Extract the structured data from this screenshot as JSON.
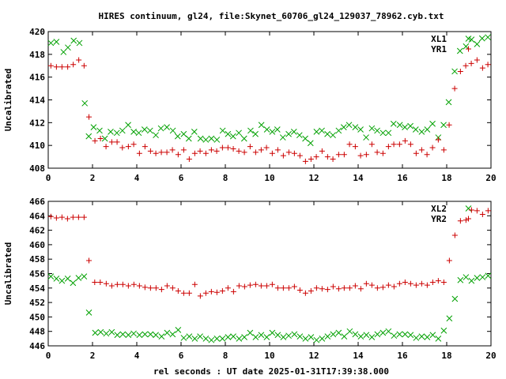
{
  "title": "HIRES continuum, gl24, file:Skynet_60706_gl24_129037_78962.cyb.txt",
  "xlabel": "rel seconds : UT date 2025-01-31T17:39:38.000",
  "colors": {
    "green": "#00a000",
    "red": "#cc0000",
    "axis": "#000000"
  },
  "chart_data": [
    {
      "type": "scatter",
      "ylabel": "Uncalibrated",
      "xlim": [
        0,
        20
      ],
      "ylim": [
        408,
        420
      ],
      "xticks": [
        "0",
        "2",
        "4",
        "6",
        "8",
        "10",
        "12",
        "14",
        "16",
        "18",
        "20"
      ],
      "yticks": [
        "408",
        "410",
        "412",
        "414",
        "416",
        "418",
        "420"
      ],
      "legend_position": "top-right",
      "series": [
        {
          "name": "XL1",
          "marker": "x",
          "color": "#00a000",
          "x": [
            0.12,
            0.37,
            0.69,
            0.89,
            1.15,
            1.41,
            1.65,
            1.83,
            2.05,
            2.32,
            2.56,
            2.82,
            3.1,
            3.35,
            3.61,
            3.86,
            4.09,
            4.35,
            4.6,
            4.86,
            5.09,
            5.36,
            5.63,
            5.85,
            6.12,
            6.35,
            6.6,
            6.88,
            7.12,
            7.37,
            7.62,
            7.88,
            8.12,
            8.35,
            8.61,
            8.85,
            9.14,
            9.36,
            9.63,
            9.88,
            10.12,
            10.35,
            10.6,
            10.86,
            11.1,
            11.35,
            11.61,
            11.85,
            12.12,
            12.36,
            12.61,
            12.86,
            13.12,
            13.35,
            13.59,
            13.87,
            14.11,
            14.36,
            14.62,
            14.86,
            15.12,
            15.37,
            15.6,
            15.88,
            16.11,
            16.36,
            16.6,
            16.87,
            17.12,
            17.36,
            17.62,
            17.86,
            18.09,
            18.36,
            18.6,
            18.87,
            19.12,
            19.37,
            19.6,
            19.86
          ],
          "y": [
            419.0,
            419.1,
            418.2,
            418.6,
            419.2,
            419.0,
            413.7,
            410.8,
            411.6,
            411.3,
            410.6,
            411.2,
            411.1,
            411.3,
            411.8,
            411.2,
            411.1,
            411.4,
            411.3,
            410.9,
            411.5,
            411.6,
            411.3,
            410.8,
            411.0,
            410.6,
            411.2,
            410.6,
            410.5,
            410.6,
            410.5,
            411.3,
            411.0,
            410.8,
            411.1,
            410.6,
            411.3,
            411.0,
            411.8,
            411.4,
            411.2,
            411.4,
            410.7,
            411.0,
            411.2,
            410.9,
            410.6,
            410.2,
            411.2,
            411.3,
            411.0,
            410.9,
            411.3,
            411.6,
            411.8,
            411.6,
            411.4,
            410.7,
            411.5,
            411.3,
            411.1,
            411.1,
            411.9,
            411.8,
            411.6,
            411.7,
            411.4,
            411.2,
            411.4,
            411.9,
            410.7,
            411.8,
            413.8,
            416.5,
            418.3,
            418.7,
            419.3,
            418.9,
            419.4,
            419.5
          ]
        },
        {
          "name": "YR1",
          "marker": "+",
          "color": "#cc0000",
          "x": [
            0.12,
            0.37,
            0.62,
            0.88,
            1.13,
            1.38,
            1.62,
            1.84,
            2.11,
            2.36,
            2.61,
            2.87,
            3.11,
            3.35,
            3.62,
            3.86,
            4.12,
            4.37,
            4.62,
            4.86,
            5.11,
            5.36,
            5.61,
            5.87,
            6.12,
            6.37,
            6.62,
            6.86,
            7.12,
            7.37,
            7.61,
            7.87,
            8.12,
            8.36,
            8.61,
            8.86,
            9.12,
            9.37,
            9.62,
            9.86,
            10.12,
            10.37,
            10.62,
            10.87,
            11.12,
            11.37,
            11.62,
            11.87,
            12.11,
            12.37,
            12.62,
            12.86,
            13.12,
            13.37,
            13.61,
            13.87,
            14.11,
            14.37,
            14.62,
            14.86,
            15.12,
            15.37,
            15.61,
            15.87,
            16.12,
            16.37,
            16.62,
            16.87,
            17.11,
            17.36,
            17.62,
            17.87,
            18.11,
            18.36,
            18.62,
            18.86,
            19.11,
            19.37,
            19.62,
            19.86
          ],
          "y": [
            417.0,
            416.9,
            416.9,
            416.9,
            417.1,
            417.5,
            417.0,
            412.5,
            410.4,
            410.6,
            409.9,
            410.3,
            410.3,
            409.8,
            409.9,
            410.1,
            409.3,
            409.9,
            409.5,
            409.3,
            409.4,
            409.4,
            409.6,
            409.2,
            409.6,
            408.8,
            409.3,
            409.5,
            409.3,
            409.6,
            409.5,
            409.8,
            409.8,
            409.7,
            409.5,
            409.4,
            409.9,
            409.4,
            409.6,
            409.8,
            409.3,
            409.6,
            409.1,
            409.4,
            409.3,
            409.1,
            408.6,
            408.8,
            409.0,
            409.5,
            409.0,
            408.8,
            409.2,
            409.2,
            410.1,
            409.9,
            409.1,
            409.2,
            410.1,
            409.4,
            409.3,
            409.9,
            410.1,
            410.1,
            410.4,
            410.1,
            409.3,
            409.6,
            409.2,
            409.8,
            410.5,
            409.6,
            411.8,
            415.0,
            416.5,
            417.0,
            417.2,
            417.5,
            416.8,
            417.1
          ]
        }
      ]
    },
    {
      "type": "scatter",
      "ylabel": "Uncalibrated",
      "xlim": [
        0,
        20
      ],
      "ylim": [
        446,
        466
      ],
      "xticks": [
        "0",
        "2",
        "4",
        "6",
        "8",
        "10",
        "12",
        "14",
        "16",
        "18",
        "20"
      ],
      "yticks": [
        "446",
        "448",
        "450",
        "452",
        "454",
        "456",
        "458",
        "460",
        "462",
        "464",
        "466"
      ],
      "legend_position": "top-right",
      "series": [
        {
          "name": "XL2",
          "marker": "x",
          "color": "#00a000",
          "x": [
            0.12,
            0.37,
            0.62,
            0.88,
            1.12,
            1.37,
            1.62,
            1.84,
            2.12,
            2.37,
            2.62,
            2.87,
            3.12,
            3.37,
            3.62,
            3.86,
            4.12,
            4.37,
            4.62,
            4.86,
            5.12,
            5.37,
            5.62,
            5.87,
            6.12,
            6.37,
            6.62,
            6.86,
            7.12,
            7.37,
            7.62,
            7.87,
            8.12,
            8.36,
            8.62,
            8.86,
            9.12,
            9.37,
            9.62,
            9.87,
            10.12,
            10.37,
            10.62,
            10.86,
            11.12,
            11.37,
            11.62,
            11.87,
            12.12,
            12.37,
            12.62,
            12.87,
            13.12,
            13.37,
            13.62,
            13.87,
            14.12,
            14.37,
            14.62,
            14.87,
            15.12,
            15.37,
            15.62,
            15.87,
            16.12,
            16.37,
            16.62,
            16.87,
            17.12,
            17.37,
            17.62,
            17.87,
            18.12,
            18.37,
            18.62,
            18.87,
            19.12,
            19.37,
            19.62,
            19.87
          ],
          "y": [
            455.6,
            455.3,
            455.0,
            455.3,
            454.7,
            455.4,
            455.6,
            450.6,
            447.8,
            447.9,
            447.7,
            447.9,
            447.5,
            447.6,
            447.5,
            447.7,
            447.5,
            447.6,
            447.6,
            447.5,
            447.3,
            447.8,
            447.6,
            448.2,
            447.1,
            447.3,
            447.0,
            447.3,
            447.0,
            446.8,
            447.0,
            447.0,
            447.2,
            447.3,
            447.0,
            447.2,
            447.8,
            447.2,
            447.5,
            447.2,
            447.8,
            447.5,
            447.2,
            447.4,
            447.6,
            447.3,
            447.0,
            447.2,
            446.8,
            447.0,
            447.3,
            447.6,
            447.8,
            447.3,
            448.0,
            447.6,
            447.3,
            447.5,
            447.2,
            447.6,
            447.8,
            448.0,
            447.4,
            447.6,
            447.6,
            447.5,
            447.1,
            447.3,
            447.2,
            447.5,
            447.0,
            448.1,
            449.8,
            452.5,
            455.1,
            455.5,
            455.0,
            455.4,
            455.5,
            455.7
          ]
        },
        {
          "name": "YR2",
          "marker": "+",
          "color": "#cc0000",
          "x": [
            0.12,
            0.37,
            0.62,
            0.87,
            1.12,
            1.37,
            1.62,
            1.84,
            2.1,
            2.35,
            2.62,
            2.87,
            3.12,
            3.37,
            3.62,
            3.87,
            4.12,
            4.37,
            4.62,
            4.87,
            5.12,
            5.37,
            5.62,
            5.87,
            6.12,
            6.37,
            6.62,
            6.87,
            7.12,
            7.37,
            7.62,
            7.87,
            8.12,
            8.37,
            8.62,
            8.87,
            9.12,
            9.37,
            9.62,
            9.87,
            10.12,
            10.37,
            10.62,
            10.87,
            11.12,
            11.37,
            11.62,
            11.87,
            12.12,
            12.37,
            12.62,
            12.87,
            13.12,
            13.37,
            13.62,
            13.87,
            14.12,
            14.37,
            14.62,
            14.87,
            15.12,
            15.37,
            15.62,
            15.87,
            16.12,
            16.37,
            16.62,
            16.87,
            17.12,
            17.37,
            17.62,
            17.87,
            18.12,
            18.37,
            18.62,
            18.87,
            19.12,
            19.37,
            19.62,
            19.87
          ],
          "y": [
            463.9,
            463.7,
            463.8,
            463.6,
            463.8,
            463.8,
            463.8,
            457.8,
            454.8,
            454.8,
            454.6,
            454.3,
            454.5,
            454.5,
            454.3,
            454.5,
            454.3,
            454.1,
            454.0,
            454.0,
            453.8,
            454.3,
            454.0,
            453.6,
            453.3,
            453.3,
            454.5,
            452.9,
            453.3,
            453.5,
            453.4,
            453.6,
            454.0,
            453.5,
            454.3,
            454.2,
            454.4,
            454.5,
            454.3,
            454.3,
            454.5,
            454.0,
            454.0,
            454.0,
            454.2,
            453.7,
            453.3,
            453.6,
            454.0,
            453.9,
            453.8,
            454.2,
            453.9,
            454.0,
            454.0,
            454.3,
            453.9,
            454.6,
            454.4,
            454.0,
            454.1,
            454.4,
            454.2,
            454.6,
            454.8,
            454.6,
            454.4,
            454.6,
            454.4,
            454.8,
            455.0,
            454.8,
            457.8,
            461.3,
            463.3,
            463.4,
            464.8,
            464.7,
            464.2,
            464.7
          ]
        }
      ]
    }
  ]
}
